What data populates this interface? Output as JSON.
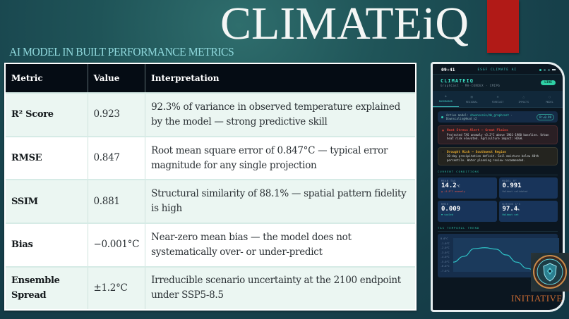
{
  "slide": {
    "title": "CLIMATEiQ",
    "subtitle": "AI MODEL IN BUILT PERFORMANCE METRICS",
    "accent_bar_color": "#b11a17",
    "footer_label": "INITIATIVE"
  },
  "metrics_table": {
    "headers": [
      "Metric",
      "Value",
      "Interpretation"
    ],
    "rows": [
      {
        "metric": "R² Score",
        "value": "0.923",
        "interpretation": "92.3% of variance in observed temperature explained by the model — strong predictive skill"
      },
      {
        "metric": "RMSE",
        "value": "0.847",
        "interpretation": "Root mean square error of 0.847°C — typical error magnitude for any single projection"
      },
      {
        "metric": "SSIM",
        "value": "0.881",
        "interpretation": "Structural similarity of 88.1% — spatial pattern fidelity is high"
      },
      {
        "metric": "Bias",
        "value": "−0.001°C",
        "interpretation": "Near-zero mean bias — the model does not systematically over- or under-predict"
      },
      {
        "metric": "Ensemble Spread",
        "value": "±1.2°C",
        "interpretation": "Irreducible scenario uncertainty at the 2100 endpoint under SSP5-8.5"
      }
    ]
  },
  "phone": {
    "status": {
      "time": "09:41",
      "brand": "ESGF CLIMATE AI"
    },
    "header": {
      "app_name": "CLIMATEIQ",
      "sub": "GraphCast · MA-CORDEX · CMIP6",
      "live_badge": "LIVE"
    },
    "tabs": [
      {
        "label": "DASHBOARD",
        "icon": "◆",
        "active": true
      },
      {
        "label": "REGIONAL",
        "icon": "▦",
        "active": false
      },
      {
        "label": "FORECAST",
        "icon": "✺",
        "active": false
      },
      {
        "label": "IMPACTS",
        "icon": "△",
        "active": false
      },
      {
        "label": "MODEL",
        "icon": "○",
        "active": false
      }
    ],
    "model_card": {
      "prefix": "Active model:",
      "model": "shwansonin/dm_graphcast",
      "suffix": "· DownscalingHead v2",
      "pill": "R²=0.99"
    },
    "alerts": [
      {
        "type": "heat",
        "title": "Heat Stress Alert — Great Plains",
        "body": "Projected TAS anomaly +3.2°C above 1961-1980 baseline. Urban heat risk elevated. Agriculture impact: HIGH.",
        "icon": "warning-icon"
      },
      {
        "type": "drought",
        "title": "Drought Risk — Southwest Region",
        "body": "30-day precipitation deficit. Soil moisture below 40th percentile. Water planning review recommended.",
        "icon": "drought-icon"
      }
    ],
    "current_conditions_title": "CURRENT CONDITIONS",
    "conditions": [
      {
        "label": "MEAN TAS",
        "value": "14.2",
        "unit": "°C",
        "note": "▲ +1.8°C anomaly",
        "note_color": "red"
      },
      {
        "label": "MODEL R²",
        "value": "0.991",
        "unit": "",
        "note": "Holdout validated",
        "note_color": "grey"
      },
      {
        "label": "RMSE",
        "value": "0.009",
        "unit": "",
        "note": "▼ scaled",
        "note_color": "teal"
      },
      {
        "label": "WITHIN 1°C",
        "value": "97.4",
        "unit": "%",
        "note": "Holdout set",
        "note_color": "teal"
      }
    ],
    "trend_title": "TAS TEMPORAL TREND"
  },
  "chart_data": {
    "type": "line",
    "title": "TAS TEMPORAL TREND",
    "xlabel": "",
    "ylabel": "",
    "yticks": [
      "0.0°C",
      "-1.0°C",
      "-2.0°C",
      "-3.0°C",
      "-4.0°C",
      "-5.0°C",
      "-6.0°C",
      "-7.0°C"
    ],
    "ylim": [
      -7,
      0
    ],
    "series": [
      {
        "name": "TAS",
        "color": "#2fc3c7",
        "values": [
          -5.0,
          -3.8,
          -2.2,
          -2.0,
          -2.3,
          -3.5,
          -5.0,
          -6.3,
          -7.0,
          -6.8,
          -5.2
        ]
      }
    ]
  }
}
